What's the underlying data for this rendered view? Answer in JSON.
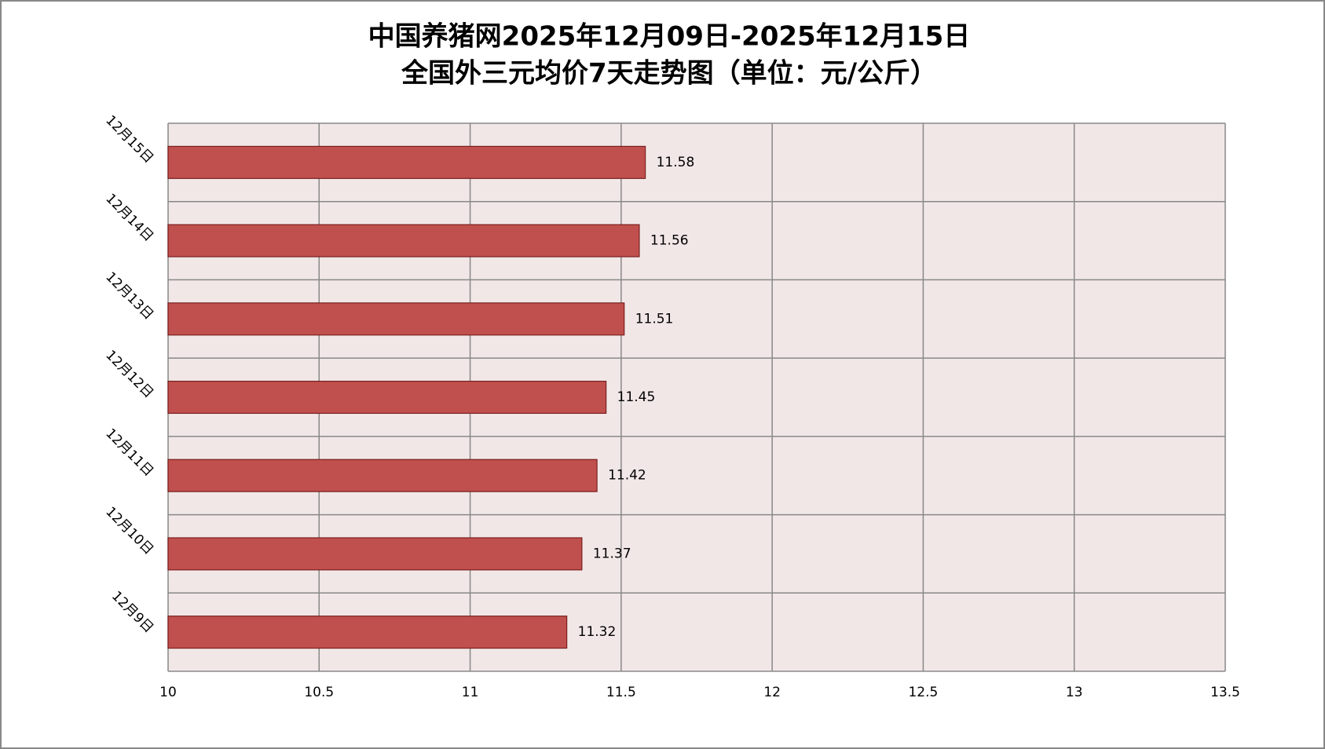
{
  "chart_data": {
    "type": "bar",
    "orientation": "horizontal",
    "title": "中国养猪网2025年12月09日-2025年12月15日",
    "subtitle": "全国外三元均价7天走势图（单位：元/公斤）",
    "categories": [
      "12月9日",
      "12月10日",
      "12月11日",
      "12月12日",
      "12月13日",
      "12月14日",
      "12月15日"
    ],
    "values": [
      11.32,
      11.37,
      11.42,
      11.45,
      11.51,
      11.56,
      11.58
    ],
    "color": "#c0504d",
    "xlim": [
      10,
      13.5
    ],
    "xticks": [
      10,
      10.5,
      11,
      11.5,
      12,
      12.5,
      13,
      13.5
    ],
    "grid": true
  }
}
